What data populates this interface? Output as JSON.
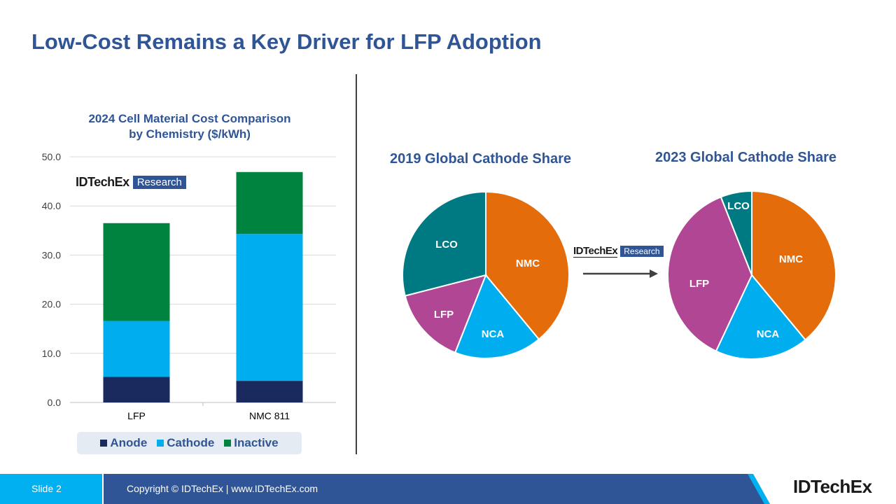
{
  "slide_title": "Low-Cost Remains a Key Driver for LFP Adoption",
  "logo": {
    "name": "IDTechEx",
    "tag": "Research"
  },
  "footer": {
    "slide_label": "Slide 2",
    "copyright": "Copyright © IDTechEx  |  www.IDTechEx.com",
    "logo": "IDTechEx"
  },
  "chart_data": [
    {
      "type": "bar",
      "stacked": true,
      "title": "2024 Cell Material Cost Comparison by Chemistry ($/kWh)",
      "title_lines": [
        "2024 Cell Material Cost Comparison",
        "by Chemistry ($/kWh)"
      ],
      "categories": [
        "LFP",
        "NMC 811"
      ],
      "series": [
        {
          "name": "Anode",
          "values": [
            5.2,
            4.4
          ],
          "color": "#1b2a5e"
        },
        {
          "name": "Cathode",
          "values": [
            11.4,
            29.9
          ],
          "color": "#00aeef"
        },
        {
          "name": "Inactive",
          "values": [
            19.9,
            12.6
          ],
          "color": "#00833e"
        }
      ],
      "ylim": [
        0,
        50
      ],
      "yticks": [
        "0.0",
        "10.0",
        "20.0",
        "30.0",
        "40.0",
        "50.0"
      ],
      "grid": true,
      "legend": "bottom"
    },
    {
      "type": "pie",
      "title": "2019 Global Cathode Share",
      "slices": [
        {
          "label": "NMC",
          "value": 39,
          "color": "#e46c0a"
        },
        {
          "label": "NCA",
          "value": 17,
          "color": "#00aeef"
        },
        {
          "label": "LFP",
          "value": 15,
          "color": "#b14694"
        },
        {
          "label": "LCO",
          "value": 29,
          "color": "#007a82"
        }
      ]
    },
    {
      "type": "pie",
      "title": "2023 Global Cathode Share",
      "slices": [
        {
          "label": "NMC",
          "value": 39,
          "color": "#e46c0a"
        },
        {
          "label": "NCA",
          "value": 18,
          "color": "#00aeef"
        },
        {
          "label": "LFP",
          "value": 37,
          "color": "#b14694"
        },
        {
          "label": "LCO",
          "value": 6,
          "color": "#007a82"
        }
      ]
    }
  ]
}
